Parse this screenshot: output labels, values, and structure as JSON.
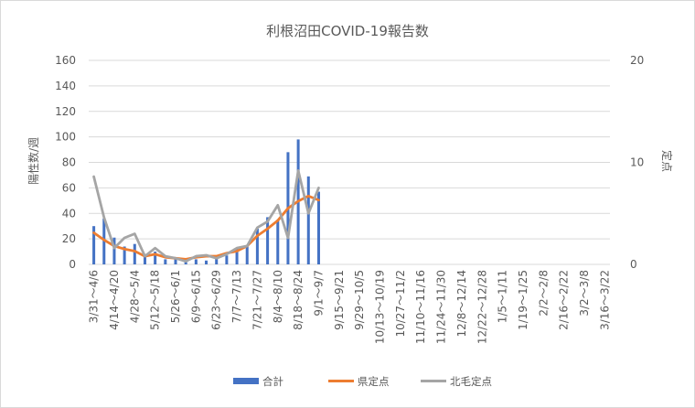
{
  "chart_data": {
    "type": "bar",
    "title": "利根沼田COVID-19報告数",
    "ylabel": "陽性数/週",
    "y2label": "定点",
    "ylim": [
      0,
      160
    ],
    "y2lim": [
      0,
      20
    ],
    "yticks": [
      0,
      20,
      40,
      60,
      80,
      100,
      120,
      140,
      160
    ],
    "y2ticks": [
      0,
      10,
      20
    ],
    "grid": true,
    "legend_position": "bottom",
    "categories": [
      "3/31",
      "4/7",
      "4/14",
      "4/21",
      "4/28",
      "5/5",
      "5/12",
      "5/19",
      "5/26",
      "6/2",
      "6/9",
      "6/16",
      "6/23",
      "6/30",
      "7/7",
      "7/14",
      "7/21",
      "7/28",
      "8/4",
      "8/11",
      "8/18",
      "8/25",
      "9/1",
      "9/8",
      "9/15",
      "9/22",
      "9/29",
      "10/6",
      "10/13",
      "10/20",
      "10/27",
      "11/3",
      "11/10",
      "11/17",
      "11/24",
      "12/1",
      "12/8",
      "12/15",
      "12/22",
      "12/29",
      "1/5",
      "1/12",
      "1/19",
      "1/26",
      "2/2",
      "2/9",
      "2/16",
      "2/23",
      "3/2",
      "3/9",
      "3/16"
    ],
    "tick_labels": [
      "3/31～4/6",
      "4/14～4/20",
      "4/28～5/4",
      "5/12～5/18",
      "5/26～6/1",
      "6/9～6/15",
      "6/23～6/29",
      "7/7～7/13",
      "7/21～7/27",
      "8/4～8/10",
      "8/18～8/24",
      "9/1～9/7",
      "9/15～9/21",
      "9/29～10/5",
      "10/13～10/19",
      "10/27～11/2",
      "11/10～11/16",
      "11/24～11/30",
      "12/8～12/14",
      "12/22～12/28",
      "1/5～1/11",
      "1/19～1/25",
      "2/2～2/8",
      "2/16～2/22",
      "3/2～3/8",
      "3/16～3/22"
    ],
    "series": [
      {
        "name": "合計",
        "type": "bar",
        "axis": "left",
        "color": "#4472C4",
        "values": [
          30,
          36,
          21,
          14,
          16,
          6,
          10,
          4,
          4,
          2,
          4,
          3,
          6,
          7,
          13,
          15,
          28,
          37,
          35,
          88,
          98,
          69,
          57,
          null,
          null,
          null,
          null,
          null,
          null,
          null,
          null,
          null,
          null,
          null,
          null,
          null,
          null,
          null,
          null,
          null,
          null,
          null,
          null,
          null,
          null,
          null,
          null,
          null,
          null,
          null,
          null
        ]
      },
      {
        "name": "県定点",
        "type": "line",
        "axis": "right",
        "color": "#ED7D31",
        "values": [
          3.1,
          2.4,
          1.8,
          1.5,
          1.3,
          0.8,
          1.0,
          0.7,
          0.6,
          0.5,
          0.7,
          0.8,
          0.8,
          1.1,
          1.3,
          1.8,
          2.8,
          3.5,
          4.3,
          5.5,
          6.2,
          6.7,
          6.3,
          null,
          null,
          null,
          null,
          null,
          null,
          null,
          null,
          null,
          null,
          null,
          null,
          null,
          null,
          null,
          null,
          null,
          null,
          null,
          null,
          null,
          null,
          null,
          null,
          null,
          null,
          null,
          null
        ]
      },
      {
        "name": "北毛定点",
        "type": "line",
        "axis": "right",
        "color": "#A5A5A5",
        "values": [
          8.6,
          4.6,
          1.6,
          2.6,
          3.0,
          0.8,
          1.6,
          0.8,
          0.6,
          0.3,
          0.8,
          0.9,
          0.6,
          1.0,
          1.6,
          1.8,
          3.6,
          4.2,
          5.8,
          2.6,
          9.2,
          5.0,
          7.5,
          null,
          null,
          null,
          null,
          null,
          null,
          null,
          null,
          null,
          null,
          null,
          null,
          null,
          null,
          null,
          null,
          null,
          null,
          null,
          null,
          null,
          null,
          null,
          null,
          null,
          null,
          null,
          null
        ]
      }
    ]
  }
}
